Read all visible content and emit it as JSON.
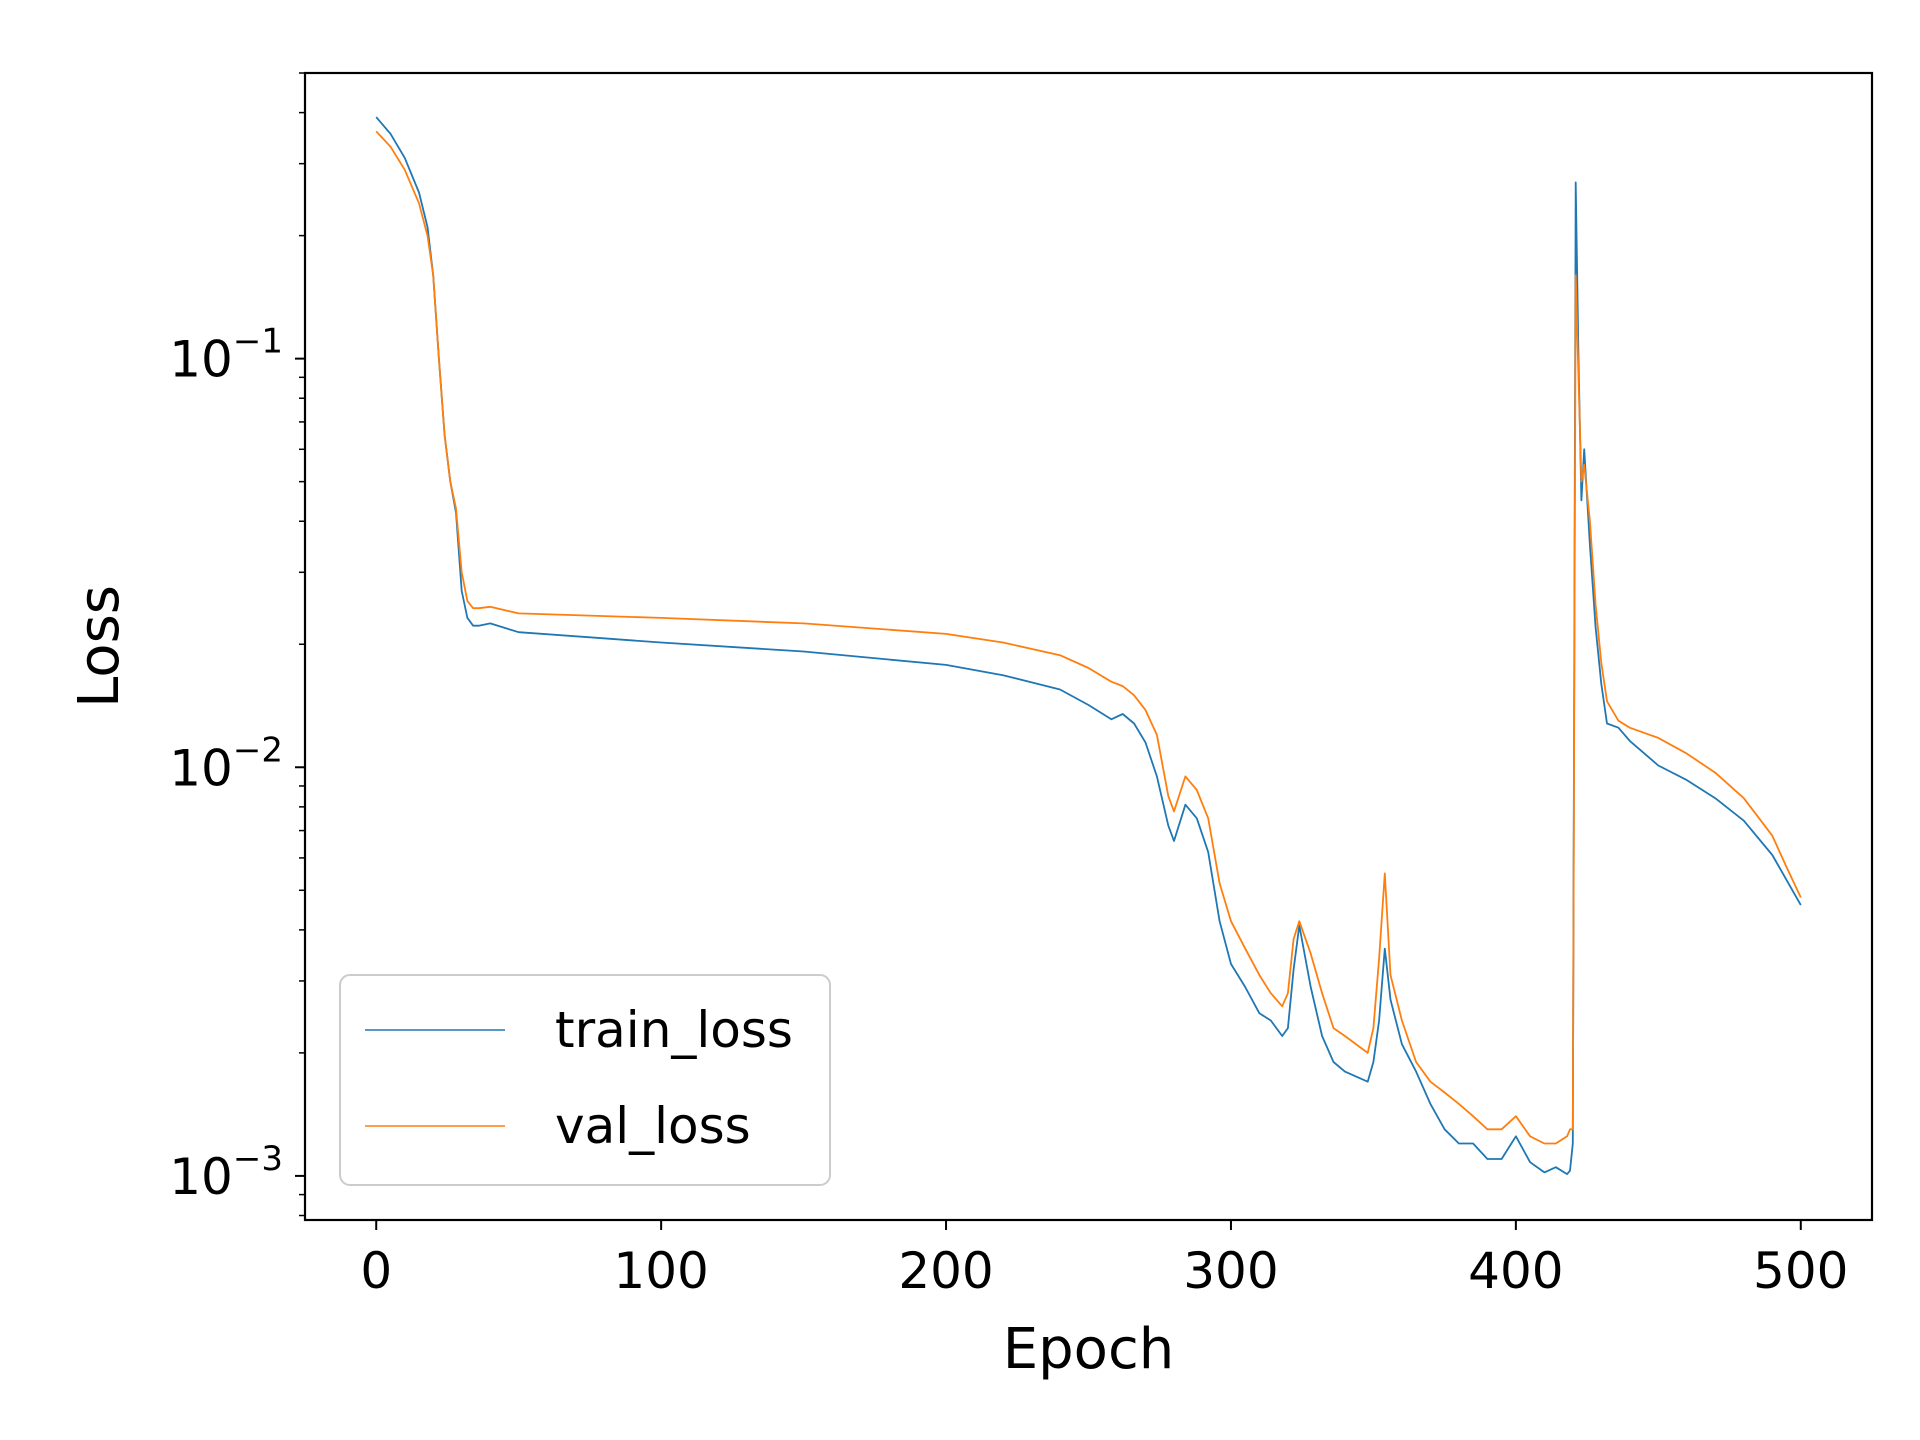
{
  "chart_data": {
    "type": "line",
    "title": "",
    "xlabel": "Epoch",
    "ylabel": "Loss",
    "xlim": [
      -25,
      525
    ],
    "ylim": [
      0.00078,
      0.5
    ],
    "yscale": "log",
    "grid": false,
    "legend_position": "lower-left",
    "x_ticks": [
      {
        "value": 0,
        "label": "0"
      },
      {
        "value": 100,
        "label": "100"
      },
      {
        "value": 200,
        "label": "200"
      },
      {
        "value": 300,
        "label": "300"
      },
      {
        "value": 400,
        "label": "400"
      },
      {
        "value": 500,
        "label": "500"
      }
    ],
    "y_ticks": [
      {
        "value": 0.1,
        "base": "10",
        "exp": "−1"
      },
      {
        "value": 0.01,
        "base": "10",
        "exp": "−2"
      },
      {
        "value": 0.001,
        "base": "10",
        "exp": "−3"
      }
    ],
    "series": [
      {
        "name": "train_loss",
        "color": "#1f77b4",
        "x": [
          0,
          5,
          10,
          15,
          18,
          20,
          22,
          24,
          26,
          28,
          30,
          32,
          34,
          36,
          40,
          50,
          75,
          100,
          150,
          200,
          220,
          240,
          250,
          258,
          262,
          266,
          270,
          274,
          278,
          280,
          284,
          288,
          292,
          296,
          300,
          305,
          310,
          314,
          318,
          320,
          322,
          324,
          328,
          332,
          336,
          340,
          348,
          350,
          352,
          354,
          356,
          360,
          365,
          370,
          375,
          380,
          385,
          390,
          395,
          400,
          405,
          410,
          414,
          418,
          419,
          420,
          421,
          422,
          423,
          424,
          426,
          428,
          430,
          432,
          436,
          440,
          450,
          460,
          470,
          480,
          490,
          495,
          500
        ],
        "y": [
          0.39,
          0.355,
          0.31,
          0.255,
          0.21,
          0.16,
          0.1,
          0.065,
          0.05,
          0.042,
          0.027,
          0.0232,
          0.0222,
          0.0222,
          0.0225,
          0.0214,
          0.0208,
          0.0202,
          0.0192,
          0.0178,
          0.0168,
          0.0155,
          0.0142,
          0.0131,
          0.0135,
          0.0128,
          0.0115,
          0.0095,
          0.0072,
          0.0066,
          0.0081,
          0.0075,
          0.0062,
          0.0042,
          0.0033,
          0.0029,
          0.0025,
          0.0024,
          0.0022,
          0.0023,
          0.0032,
          0.0041,
          0.0029,
          0.0022,
          0.0019,
          0.0018,
          0.0017,
          0.0019,
          0.0024,
          0.0036,
          0.0027,
          0.0021,
          0.0018,
          0.0015,
          0.0013,
          0.0012,
          0.0012,
          0.0011,
          0.0011,
          0.00125,
          0.00108,
          0.00102,
          0.00105,
          0.00101,
          0.00103,
          0.0012,
          0.27,
          0.1,
          0.045,
          0.06,
          0.035,
          0.022,
          0.016,
          0.0128,
          0.0125,
          0.0116,
          0.0101,
          0.0093,
          0.0084,
          0.0074,
          0.0061,
          0.0053,
          0.0046
        ]
      },
      {
        "name": "val_loss",
        "color": "#ff7f0e",
        "x": [
          0,
          5,
          10,
          15,
          18,
          20,
          22,
          24,
          26,
          28,
          30,
          32,
          34,
          36,
          40,
          50,
          75,
          100,
          150,
          200,
          220,
          240,
          250,
          258,
          262,
          266,
          270,
          274,
          278,
          280,
          284,
          288,
          292,
          296,
          300,
          305,
          310,
          314,
          318,
          320,
          322,
          324,
          328,
          332,
          336,
          340,
          348,
          350,
          352,
          354,
          356,
          360,
          365,
          370,
          375,
          380,
          385,
          390,
          395,
          400,
          405,
          410,
          414,
          418,
          419,
          420,
          421,
          422,
          423,
          424,
          426,
          428,
          430,
          432,
          436,
          440,
          450,
          460,
          470,
          480,
          490,
          495,
          500
        ],
        "y": [
          0.36,
          0.33,
          0.29,
          0.24,
          0.2,
          0.16,
          0.1,
          0.065,
          0.05,
          0.043,
          0.03,
          0.0255,
          0.0245,
          0.0245,
          0.0247,
          0.0238,
          0.0235,
          0.0232,
          0.0225,
          0.0212,
          0.0202,
          0.0188,
          0.0175,
          0.0162,
          0.0158,
          0.015,
          0.0138,
          0.012,
          0.0085,
          0.0078,
          0.0095,
          0.0088,
          0.0075,
          0.0052,
          0.0042,
          0.0036,
          0.0031,
          0.0028,
          0.0026,
          0.0028,
          0.0038,
          0.0042,
          0.0035,
          0.0028,
          0.0023,
          0.0022,
          0.002,
          0.0023,
          0.0034,
          0.0055,
          0.0031,
          0.0024,
          0.0019,
          0.0017,
          0.0016,
          0.0015,
          0.0014,
          0.0013,
          0.0013,
          0.0014,
          0.00125,
          0.0012,
          0.0012,
          0.00125,
          0.0013,
          0.0013,
          0.16,
          0.09,
          0.05,
          0.055,
          0.04,
          0.025,
          0.018,
          0.0145,
          0.013,
          0.0125,
          0.0118,
          0.0108,
          0.0097,
          0.0084,
          0.0068,
          0.0057,
          0.0048
        ]
      }
    ]
  }
}
